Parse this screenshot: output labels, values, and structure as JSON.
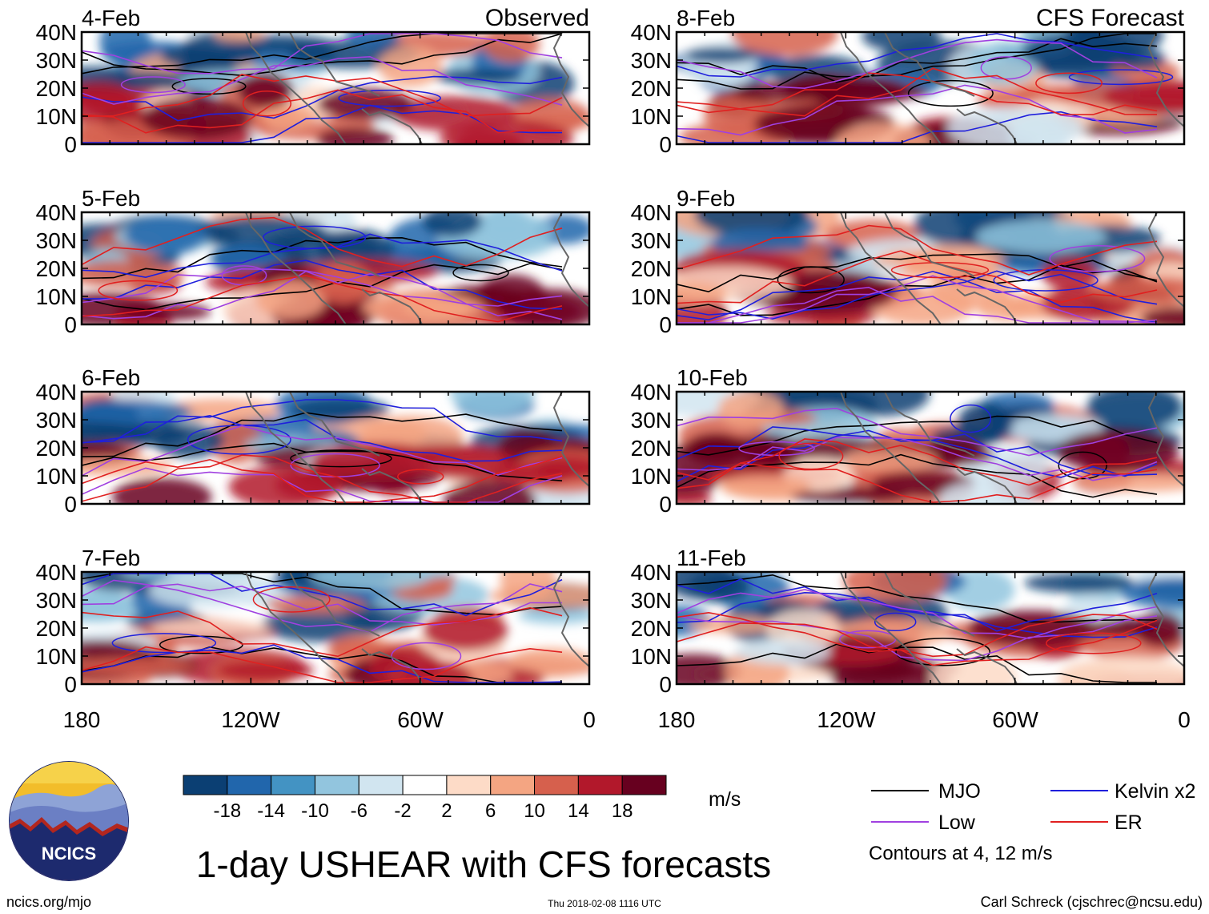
{
  "observed_label": "Observed",
  "forecast_label": "CFS Forecast",
  "observed_dates": [
    "4-Feb",
    "5-Feb",
    "6-Feb",
    "7-Feb"
  ],
  "forecast_dates": [
    "8-Feb",
    "9-Feb",
    "10-Feb",
    "11-Feb"
  ],
  "lat_ticks": [
    "40N",
    "30N",
    "20N",
    "10N",
    "0"
  ],
  "lon_ticks": [
    "180",
    "120W",
    "60W",
    "0"
  ],
  "colorbar": {
    "colors": [
      "#0b3f73",
      "#2166ac",
      "#4393c3",
      "#92c5de",
      "#d1e5f0",
      "#ffffff",
      "#fddbc7",
      "#f4a582",
      "#d6604d",
      "#b2182b",
      "#67001f"
    ],
    "labels": [
      "-18",
      "-14",
      "-10",
      "-6",
      "-2",
      "2",
      "6",
      "10",
      "14",
      "18"
    ],
    "unit": "m/s"
  },
  "legend": [
    {
      "label": "MJO",
      "color": "#000000"
    },
    {
      "label": "Kelvin x2",
      "color": "#1f1fdc"
    },
    {
      "label": "Low",
      "color": "#a040e0"
    },
    {
      "label": "ER",
      "color": "#e02020"
    }
  ],
  "contour_note": "Contours at 4, 12 m/s",
  "logo_text": "NCICS",
  "main_title": "1-day USHEAR with CFS forecasts",
  "footer_left": "ncics.org/mjo",
  "footer_center": "Thu 2018-02-08 1116 UTC",
  "footer_right": "Carl Schreck (cjschrec@ncsu.edu)"
}
